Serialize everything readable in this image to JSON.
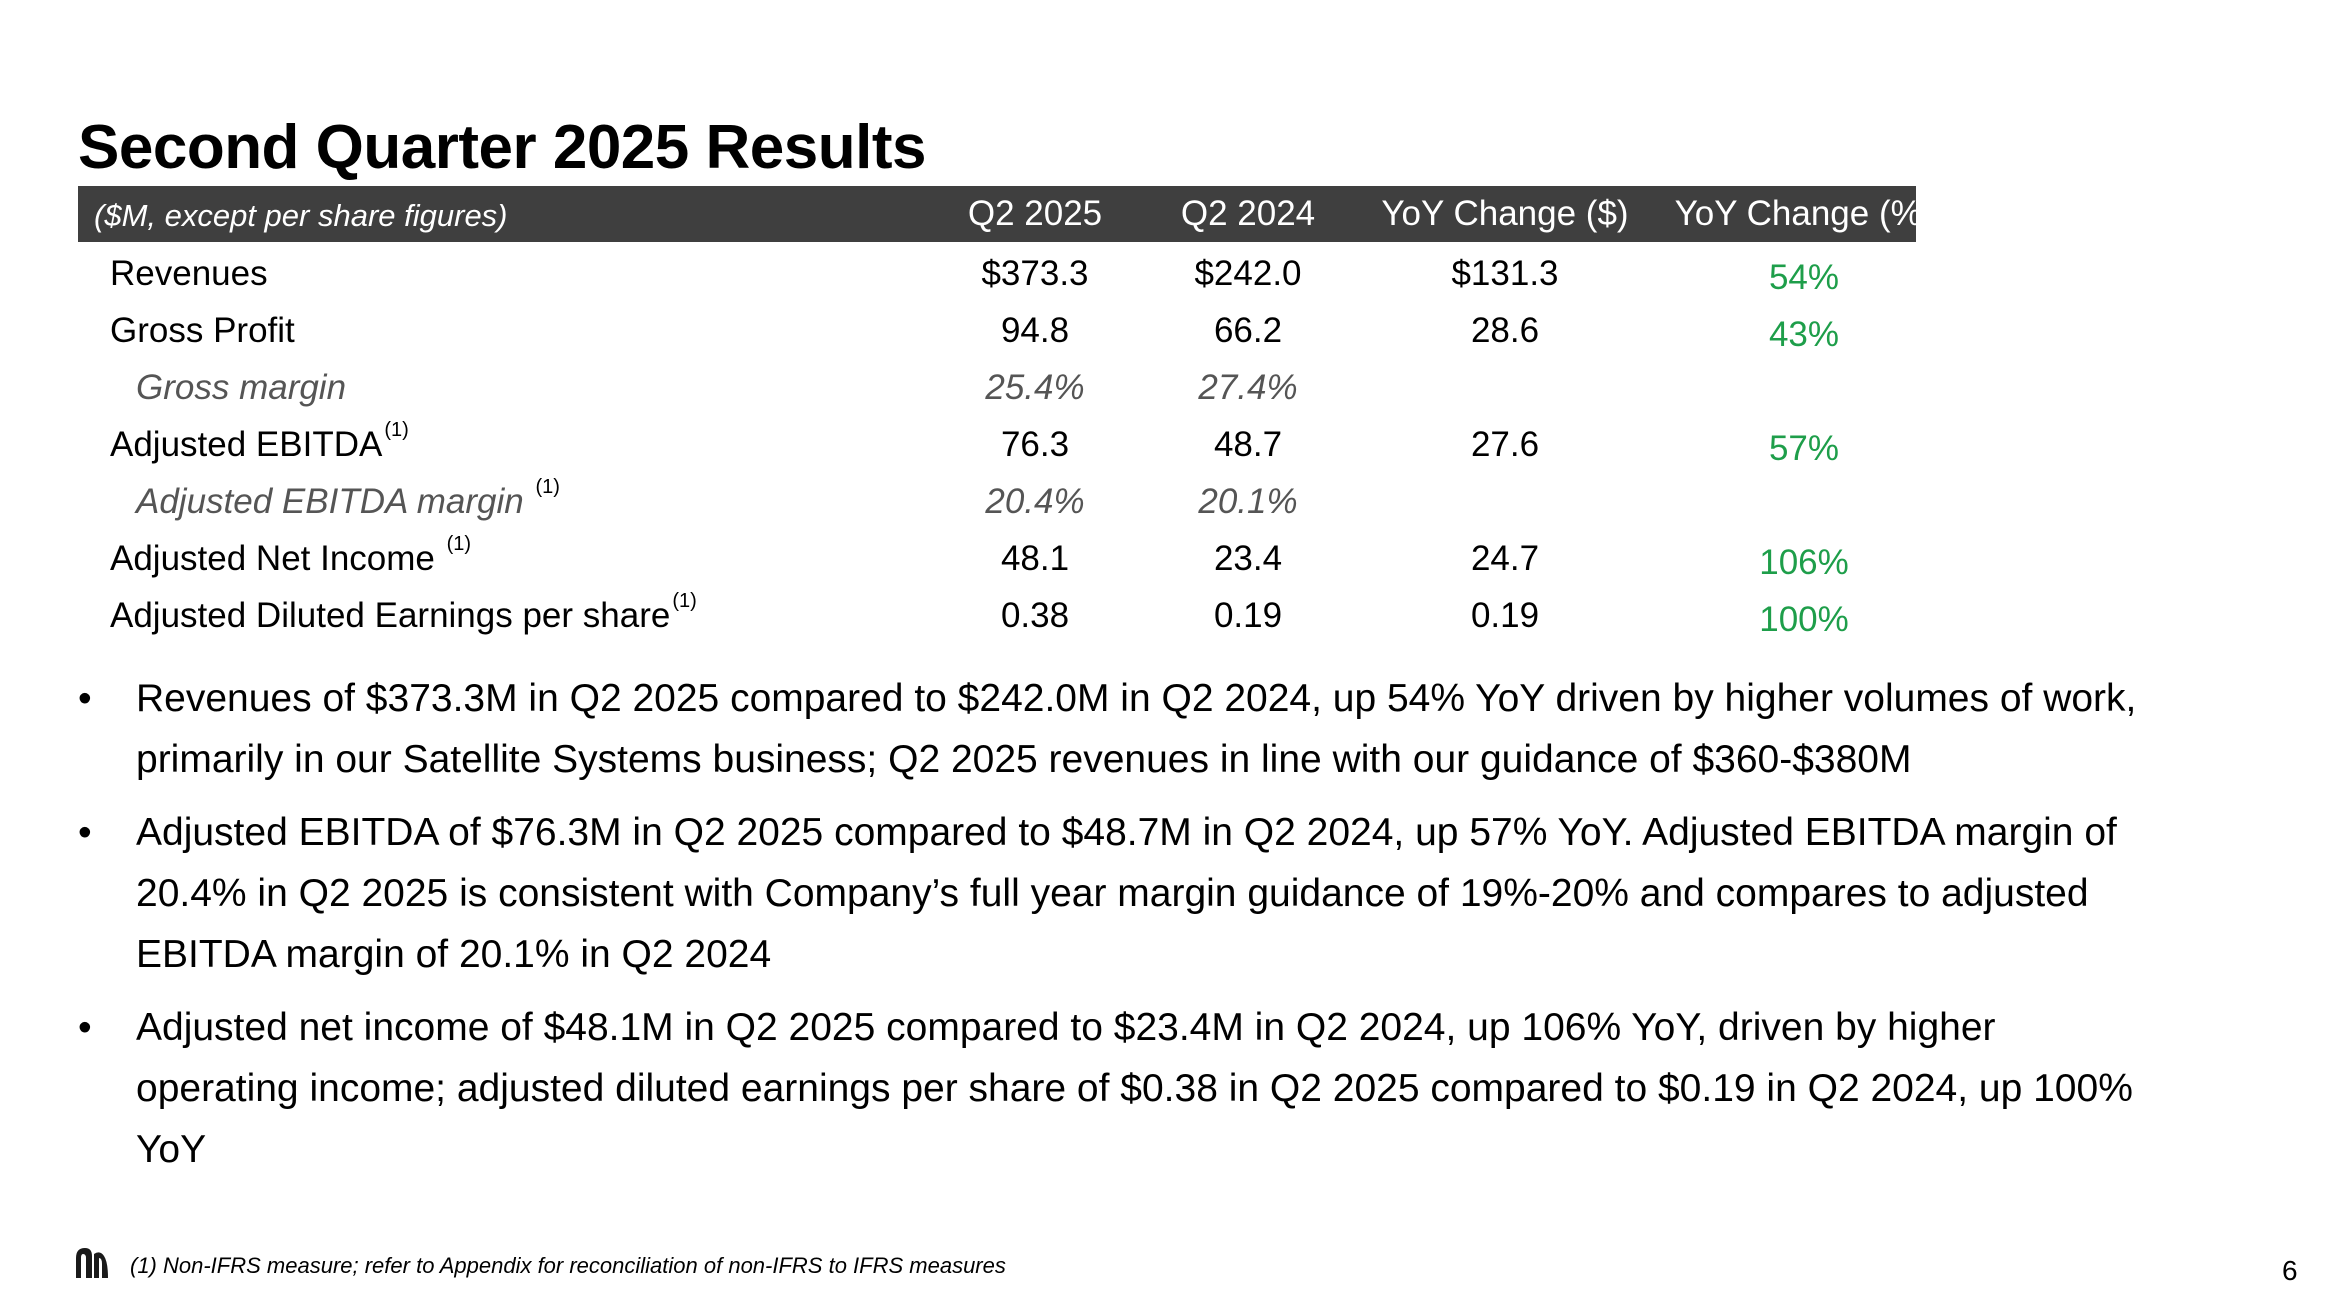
{
  "title": "Second Quarter 2025 Results",
  "table": {
    "units": "($M, except per share figures)",
    "columns": [
      "Q2 2025",
      "Q2 2024",
      "YoY Change ($)",
      "YoY Change (%)"
    ],
    "rows": [
      {
        "label": "Revenues",
        "fn": "",
        "q2_2025": "$373.3",
        "q2_2024": "$242.0",
        "chg": "$131.3",
        "pct": "54%"
      },
      {
        "label": "Gross Profit",
        "fn": "",
        "q2_2025": "94.8",
        "q2_2024": "66.2",
        "chg": "28.6",
        "pct": "43%"
      },
      {
        "label": "Gross margin",
        "fn": "",
        "q2_2025": "25.4%",
        "q2_2024": "27.4%",
        "chg": "",
        "pct": ""
      },
      {
        "label": "Adjusted EBITDA",
        "fn": "(1)",
        "q2_2025": "76.3",
        "q2_2024": "48.7",
        "chg": "27.6",
        "pct": "57%"
      },
      {
        "label": "Adjusted EBITDA margin",
        "fn": "(1)",
        "q2_2025": "20.4%",
        "q2_2024": "20.1%",
        "chg": "",
        "pct": ""
      },
      {
        "label": "Adjusted Net Income",
        "fn": "(1)",
        "q2_2025": "48.1",
        "q2_2024": "23.4",
        "chg": "24.7",
        "pct": "106%"
      },
      {
        "label": "Adjusted Diluted Earnings per share",
        "fn": "(1)",
        "q2_2025": "0.38",
        "q2_2024": "0.19",
        "chg": "0.19",
        "pct": "100%"
      }
    ]
  },
  "bullets": [
    "Revenues of $373.3M in Q2 2025 compared to $242.0M in Q2 2024, up 54% YoY driven by higher volumes of work, primarily in our Satellite Systems business; Q2 2025 revenues in line with our guidance of $360-$380M",
    "Adjusted EBITDA of $76.3M in Q2 2025 compared to $48.7M in Q2 2024, up 57% YoY. Adjusted EBITDA margin of 20.4% in Q2 2025 is consistent with Company’s full year margin guidance of 19%-20% and compares to adjusted EBITDA margin of 20.1% in Q2 2024",
    "Adjusted net income of $48.1M in Q2 2025 compared to $23.4M in Q2 2024, up 106% YoY, driven by higher operating income; adjusted diluted earnings per share of $0.38 in Q2 2025 compared to $0.19 in Q2 2024, up 100% YoY"
  ],
  "bullet_symbol": "•",
  "footnote": "(1) Non-IFRS measure; refer to Appendix for reconciliation of non-IFRS to IFRS measures",
  "page_number": "6",
  "logo_icon": "company-logo-icon",
  "colors": {
    "header_bg": "#3f3f3f",
    "positive": "#1e9e4a",
    "subtle": "#555555"
  }
}
